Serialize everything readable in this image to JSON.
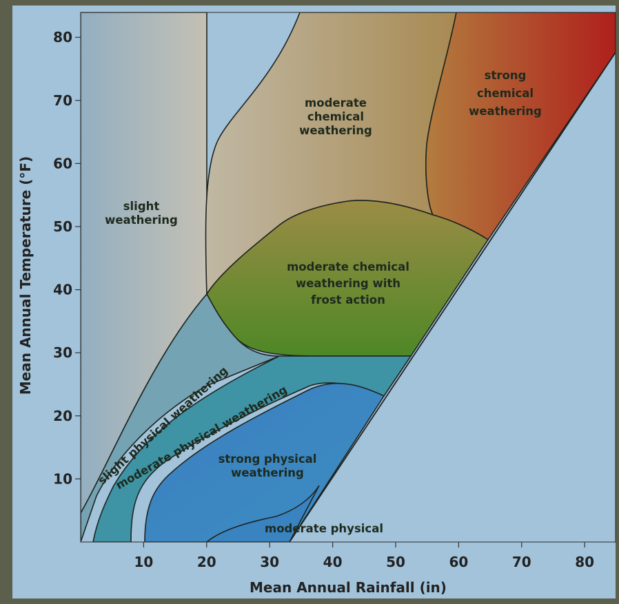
{
  "chart_data": {
    "type": "area",
    "xlabel": "Mean Annual Rainfall (in)",
    "ylabel": "Mean Annual Temperature (°F)",
    "x_ticks": [
      10,
      20,
      30,
      40,
      50,
      60,
      70,
      80
    ],
    "y_ticks": [
      10,
      20,
      30,
      40,
      50,
      60,
      70,
      80
    ],
    "xlim": [
      0,
      85
    ],
    "ylim": [
      0,
      84
    ],
    "regions": [
      {
        "name": "slight weathering",
        "label_lines": [
          "slight",
          "weathering"
        ]
      },
      {
        "name": "moderate chemical weathering",
        "label_lines": [
          "moderate",
          "chemical",
          "weathering"
        ]
      },
      {
        "name": "strong chemical weathering",
        "label_lines": [
          "strong",
          "chemical",
          "weathering"
        ]
      },
      {
        "name": "moderate chemical weathering with frost action",
        "label_lines": [
          "moderate chemical",
          "weathering with",
          "frost action"
        ]
      },
      {
        "name": "slight physical weathering",
        "label_lines": [
          "slight physical weathering"
        ]
      },
      {
        "name": "moderate physical weathering",
        "label_lines": [
          "moderate physical weathering"
        ]
      },
      {
        "name": "strong physical weathering",
        "label_lines": [
          "strong physical",
          "weathering"
        ]
      },
      {
        "name": "moderate physical",
        "label_lines": [
          "moderate physical"
        ]
      }
    ]
  },
  "colors": {
    "background_outside": "#a2c3da",
    "frame": "#5c5f4c",
    "slight_weathering_left": "#93afc1",
    "slight_weathering_right": "#c4c0b4",
    "moderate_chemical": "#b29a70",
    "strong_chemical_left": "#b27c3e",
    "strong_chemical_right": "#b0201c",
    "frost_top": "#9b8c45",
    "frost_bottom": "#4e8826",
    "slight_physical": "#74a3b3",
    "moderate_physical": "#3e93a5",
    "strong_physical": "#3983c1"
  }
}
